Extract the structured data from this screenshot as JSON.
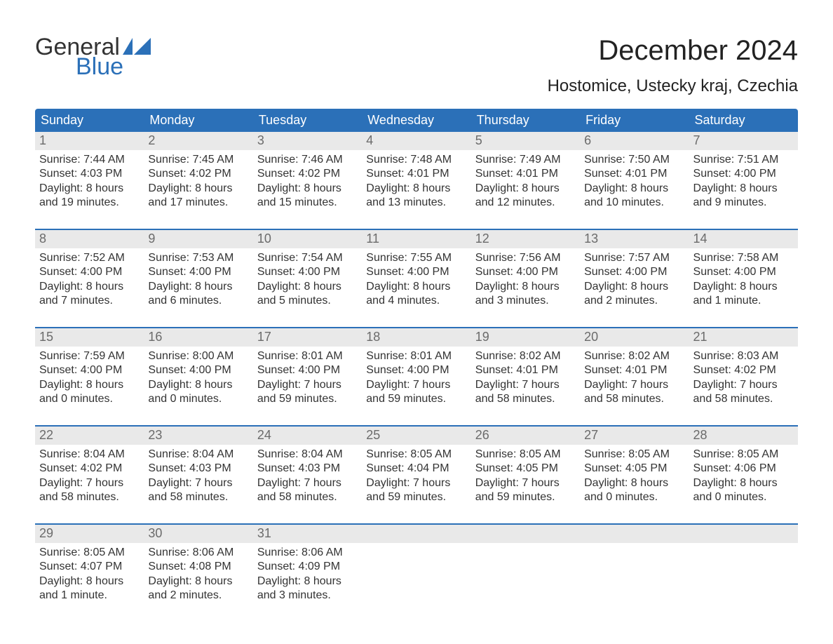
{
  "brand": {
    "part1": "General",
    "part2": "Blue",
    "accent_color": "#2b70b8"
  },
  "title": "December 2024",
  "location": "Hostomice, Ustecky kraj, Czechia",
  "days_of_week": [
    "Sunday",
    "Monday",
    "Tuesday",
    "Wednesday",
    "Thursday",
    "Friday",
    "Saturday"
  ],
  "labels": {
    "sunrise": "Sunrise:",
    "sunset": "Sunset:",
    "daylight": "Daylight:"
  },
  "colors": {
    "header_bg": "#2b70b8",
    "header_text": "#ffffff",
    "daynum_bg": "#e9e9e9",
    "daynum_text": "#6b6b6b",
    "body_text": "#333333",
    "page_bg": "#ffffff",
    "separator": "#2b70b8"
  },
  "typography": {
    "month_title_pt": 40,
    "location_pt": 24,
    "dow_pt": 18,
    "daynum_pt": 18,
    "cell_pt": 16,
    "logo_pt": 34
  },
  "calendar_start_day": 1,
  "calendar_start_weekday": 0,
  "weeks": [
    [
      {
        "n": 1,
        "sunrise": "7:44 AM",
        "sunset": "4:03 PM",
        "daylight1": "8 hours",
        "daylight2": "and 19 minutes."
      },
      {
        "n": 2,
        "sunrise": "7:45 AM",
        "sunset": "4:02 PM",
        "daylight1": "8 hours",
        "daylight2": "and 17 minutes."
      },
      {
        "n": 3,
        "sunrise": "7:46 AM",
        "sunset": "4:02 PM",
        "daylight1": "8 hours",
        "daylight2": "and 15 minutes."
      },
      {
        "n": 4,
        "sunrise": "7:48 AM",
        "sunset": "4:01 PM",
        "daylight1": "8 hours",
        "daylight2": "and 13 minutes."
      },
      {
        "n": 5,
        "sunrise": "7:49 AM",
        "sunset": "4:01 PM",
        "daylight1": "8 hours",
        "daylight2": "and 12 minutes."
      },
      {
        "n": 6,
        "sunrise": "7:50 AM",
        "sunset": "4:01 PM",
        "daylight1": "8 hours",
        "daylight2": "and 10 minutes."
      },
      {
        "n": 7,
        "sunrise": "7:51 AM",
        "sunset": "4:00 PM",
        "daylight1": "8 hours",
        "daylight2": "and 9 minutes."
      }
    ],
    [
      {
        "n": 8,
        "sunrise": "7:52 AM",
        "sunset": "4:00 PM",
        "daylight1": "8 hours",
        "daylight2": "and 7 minutes."
      },
      {
        "n": 9,
        "sunrise": "7:53 AM",
        "sunset": "4:00 PM",
        "daylight1": "8 hours",
        "daylight2": "and 6 minutes."
      },
      {
        "n": 10,
        "sunrise": "7:54 AM",
        "sunset": "4:00 PM",
        "daylight1": "8 hours",
        "daylight2": "and 5 minutes."
      },
      {
        "n": 11,
        "sunrise": "7:55 AM",
        "sunset": "4:00 PM",
        "daylight1": "8 hours",
        "daylight2": "and 4 minutes."
      },
      {
        "n": 12,
        "sunrise": "7:56 AM",
        "sunset": "4:00 PM",
        "daylight1": "8 hours",
        "daylight2": "and 3 minutes."
      },
      {
        "n": 13,
        "sunrise": "7:57 AM",
        "sunset": "4:00 PM",
        "daylight1": "8 hours",
        "daylight2": "and 2 minutes."
      },
      {
        "n": 14,
        "sunrise": "7:58 AM",
        "sunset": "4:00 PM",
        "daylight1": "8 hours",
        "daylight2": "and 1 minute."
      }
    ],
    [
      {
        "n": 15,
        "sunrise": "7:59 AM",
        "sunset": "4:00 PM",
        "daylight1": "8 hours",
        "daylight2": "and 0 minutes."
      },
      {
        "n": 16,
        "sunrise": "8:00 AM",
        "sunset": "4:00 PM",
        "daylight1": "8 hours",
        "daylight2": "and 0 minutes."
      },
      {
        "n": 17,
        "sunrise": "8:01 AM",
        "sunset": "4:00 PM",
        "daylight1": "7 hours",
        "daylight2": "and 59 minutes."
      },
      {
        "n": 18,
        "sunrise": "8:01 AM",
        "sunset": "4:00 PM",
        "daylight1": "7 hours",
        "daylight2": "and 59 minutes."
      },
      {
        "n": 19,
        "sunrise": "8:02 AM",
        "sunset": "4:01 PM",
        "daylight1": "7 hours",
        "daylight2": "and 58 minutes."
      },
      {
        "n": 20,
        "sunrise": "8:02 AM",
        "sunset": "4:01 PM",
        "daylight1": "7 hours",
        "daylight2": "and 58 minutes."
      },
      {
        "n": 21,
        "sunrise": "8:03 AM",
        "sunset": "4:02 PM",
        "daylight1": "7 hours",
        "daylight2": "and 58 minutes."
      }
    ],
    [
      {
        "n": 22,
        "sunrise": "8:04 AM",
        "sunset": "4:02 PM",
        "daylight1": "7 hours",
        "daylight2": "and 58 minutes."
      },
      {
        "n": 23,
        "sunrise": "8:04 AM",
        "sunset": "4:03 PM",
        "daylight1": "7 hours",
        "daylight2": "and 58 minutes."
      },
      {
        "n": 24,
        "sunrise": "8:04 AM",
        "sunset": "4:03 PM",
        "daylight1": "7 hours",
        "daylight2": "and 58 minutes."
      },
      {
        "n": 25,
        "sunrise": "8:05 AM",
        "sunset": "4:04 PM",
        "daylight1": "7 hours",
        "daylight2": "and 59 minutes."
      },
      {
        "n": 26,
        "sunrise": "8:05 AM",
        "sunset": "4:05 PM",
        "daylight1": "7 hours",
        "daylight2": "and 59 minutes."
      },
      {
        "n": 27,
        "sunrise": "8:05 AM",
        "sunset": "4:05 PM",
        "daylight1": "8 hours",
        "daylight2": "and 0 minutes."
      },
      {
        "n": 28,
        "sunrise": "8:05 AM",
        "sunset": "4:06 PM",
        "daylight1": "8 hours",
        "daylight2": "and 0 minutes."
      }
    ],
    [
      {
        "n": 29,
        "sunrise": "8:05 AM",
        "sunset": "4:07 PM",
        "daylight1": "8 hours",
        "daylight2": "and 1 minute."
      },
      {
        "n": 30,
        "sunrise": "8:06 AM",
        "sunset": "4:08 PM",
        "daylight1": "8 hours",
        "daylight2": "and 2 minutes."
      },
      {
        "n": 31,
        "sunrise": "8:06 AM",
        "sunset": "4:09 PM",
        "daylight1": "8 hours",
        "daylight2": "and 3 minutes."
      },
      null,
      null,
      null,
      null
    ]
  ]
}
